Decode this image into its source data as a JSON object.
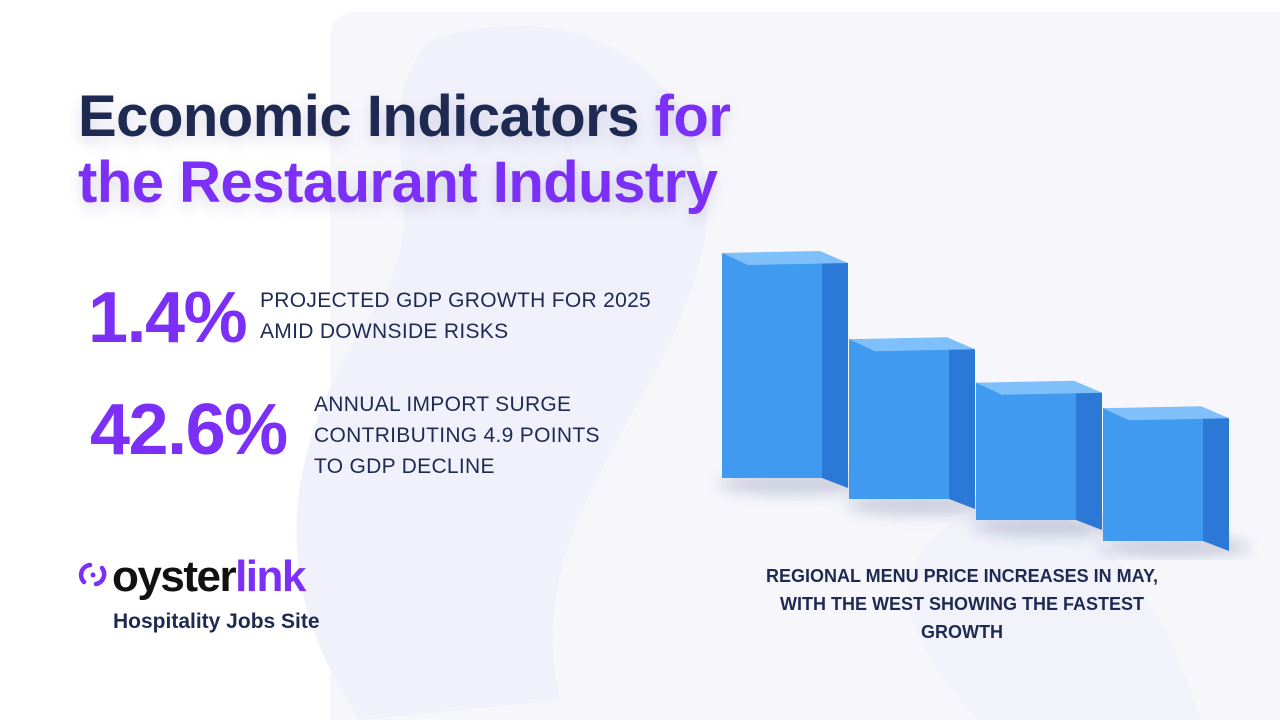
{
  "title": {
    "part1": "Economic Indicators",
    "part2": "for the Restaurant Industry"
  },
  "stats": [
    {
      "value": "1.4%",
      "lines": [
        "PROJECTED GDP GROWTH FOR 2025",
        "AMID DOWNSIDE RISKS"
      ]
    },
    {
      "value": "42.6%",
      "lines": [
        "ANNUAL IMPORT SURGE",
        "CONTRIBUTING 4.9 POINTS",
        "TO GDP DECLINE"
      ]
    }
  ],
  "logo": {
    "word_part1": "oyster",
    "word_part2": "link",
    "tagline": "Hospitality Jobs Site",
    "icon": "oysterlink-swirl-icon"
  },
  "chart_data": {
    "type": "bar",
    "values": [
      100,
      71,
      61,
      59
    ],
    "bar_color": "#3f9af0"
  },
  "caption": "REGIONAL MENU PRICE INCREASES IN MAY, WITH THE WEST SHOWING THE FASTEST GROWTH",
  "colors": {
    "accent": "#7b2ff7",
    "navy": "#1f2a52",
    "bar": "#3f9af0"
  }
}
